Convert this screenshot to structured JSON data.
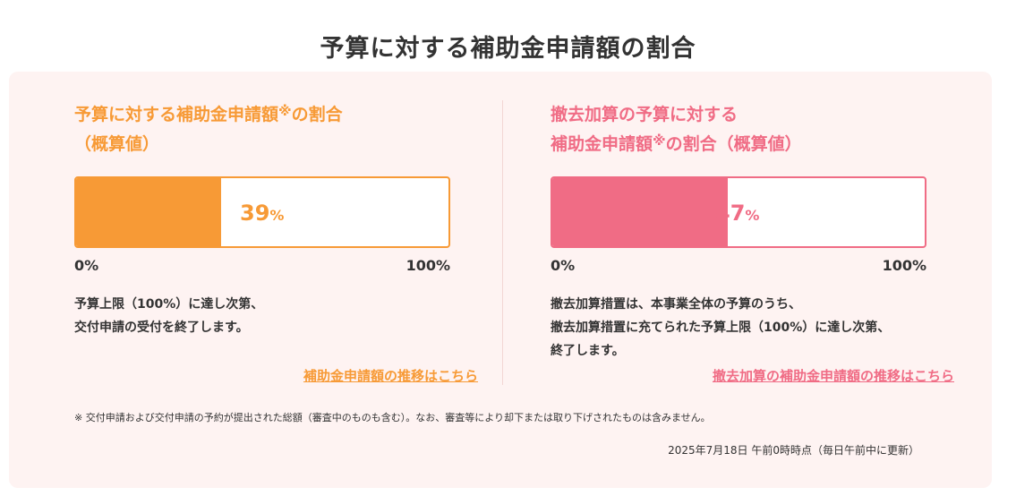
{
  "page_title": "予算に対する補助金申請額の割合",
  "colors": {
    "orange": "#f79a36",
    "pink": "#f06c85",
    "card_bg": "#fef3f2"
  },
  "left_panel": {
    "title_part1": "予算に対する補助金申請額",
    "note_mark": "※",
    "title_part2": "の割合",
    "title_line2": "（概算値）",
    "percent": 39,
    "percent_label": "39",
    "percent_unit": "%",
    "scale_min": "0%",
    "scale_max": "100%",
    "description": [
      "予算上限（100%）に達し次第、",
      "交付申請の受付を終了します。"
    ],
    "link_label": "補助金申請額の推移はこちら"
  },
  "right_panel": {
    "title_line1": "撤去加算の予算に対する",
    "title_part1": "補助金申請額",
    "note_mark": "※",
    "title_part2": "の割合（概算値）",
    "percent": 47,
    "percent_label": "47",
    "percent_unit": "%",
    "scale_min": "0%",
    "scale_max": "100%",
    "description": [
      "撤去加算措置は、本事業全体の予算のうち、",
      "撤去加算措置に充てられた予算上限（100%）に達し次第、",
      "終了します。"
    ],
    "link_label": "撤去加算の補助金申請額の推移はこちら"
  },
  "footnote": "※ 交付申請および交付申請の予約が提出された総額（審査中のものも含む）。なお、審査等により却下または取り下げされたものは含みません。",
  "timestamp": "2025年7月18日 午前0時時点（毎日午前中に更新）"
}
